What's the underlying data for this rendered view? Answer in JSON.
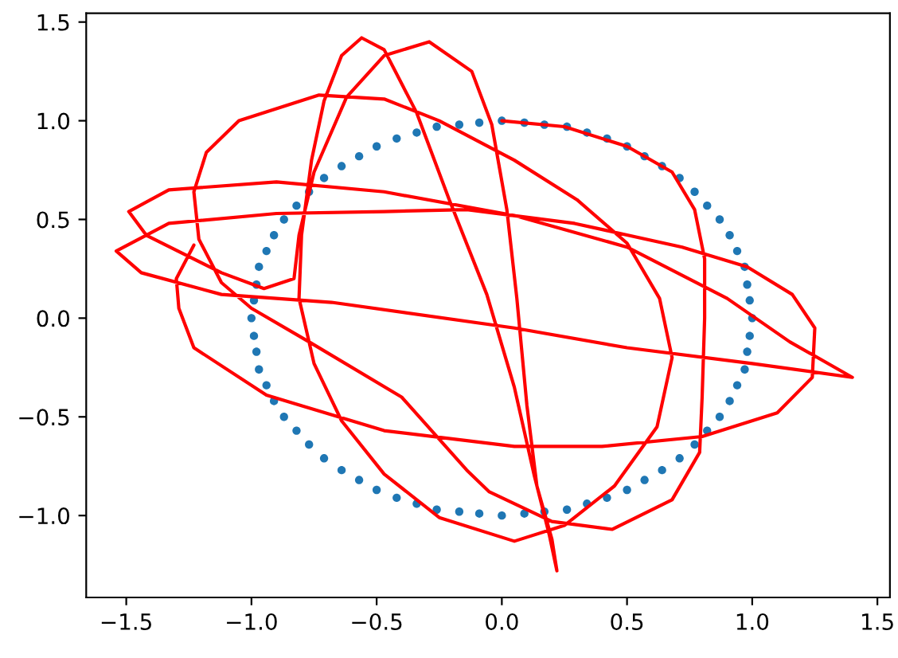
{
  "chart_data": {
    "type": "line",
    "xlim": [
      -1.66,
      1.55
    ],
    "ylim": [
      -1.415,
      1.545
    ],
    "xticks": [
      {
        "value": -1.5,
        "label": "−1.5"
      },
      {
        "value": -1.0,
        "label": "−1.0"
      },
      {
        "value": -0.5,
        "label": "−0.5"
      },
      {
        "value": 0.0,
        "label": "0.0"
      },
      {
        "value": 0.5,
        "label": "0.5"
      },
      {
        "value": 1.0,
        "label": "1.0"
      },
      {
        "value": 1.5,
        "label": "1.5"
      }
    ],
    "yticks": [
      {
        "value": -1.0,
        "label": "−1.0"
      },
      {
        "value": -0.5,
        "label": "−0.5"
      },
      {
        "value": 0.0,
        "label": "0.0"
      },
      {
        "value": 0.5,
        "label": "0.5"
      },
      {
        "value": 1.0,
        "label": "1.0"
      },
      {
        "value": 1.5,
        "label": "1.5"
      }
    ],
    "grid": false,
    "series": [
      {
        "type": "scatter",
        "color": "#1f77b4",
        "x": [
          1,
          0.99,
          0.98,
          0.97,
          0.94,
          0.91,
          0.87,
          0.82,
          0.77,
          0.71,
          0.64,
          0.57,
          0.5,
          0.42,
          0.34,
          0.26,
          0.17,
          0.09,
          0,
          -0.09,
          -0.17,
          -0.26,
          -0.34,
          -0.42,
          -0.5,
          -0.57,
          -0.64,
          -0.71,
          -0.77,
          -0.82,
          -0.87,
          -0.91,
          -0.94,
          -0.97,
          -0.98,
          -0.99,
          -1,
          -0.99,
          -0.98,
          -0.97,
          -0.94,
          -0.91,
          -0.87,
          -0.82,
          -0.77,
          -0.71,
          -0.64,
          -0.57,
          -0.5,
          -0.42,
          -0.34,
          -0.26,
          -0.17,
          -0.09,
          0,
          0.09,
          0.17,
          0.26,
          0.34,
          0.42,
          0.5,
          0.57,
          0.64,
          0.71,
          0.77,
          0.82,
          0.87,
          0.91,
          0.94,
          0.97,
          0.98,
          0.99
        ],
        "values": [
          0,
          0.09,
          0.17,
          0.26,
          0.34,
          0.42,
          0.5,
          0.57,
          0.64,
          0.71,
          0.77,
          0.82,
          0.87,
          0.91,
          0.94,
          0.97,
          0.98,
          0.99,
          1,
          0.99,
          0.98,
          0.97,
          0.94,
          0.91,
          0.87,
          0.82,
          0.77,
          0.71,
          0.64,
          0.57,
          0.5,
          0.42,
          0.34,
          0.26,
          0.17,
          0.09,
          0,
          -0.09,
          -0.17,
          -0.26,
          -0.34,
          -0.42,
          -0.5,
          -0.57,
          -0.64,
          -0.71,
          -0.77,
          -0.82,
          -0.87,
          -0.91,
          -0.94,
          -0.97,
          -0.98,
          -0.99,
          -1,
          -0.99,
          -0.98,
          -0.97,
          -0.94,
          -0.91,
          -0.87,
          -0.82,
          -0.77,
          -0.71,
          -0.64,
          -0.57,
          -0.5,
          -0.42,
          -0.34,
          -0.26,
          -0.17,
          -0.09
        ]
      },
      {
        "color": "#ff0000",
        "x": [
          0.0,
          0.25,
          0.5,
          0.68,
          0.77,
          0.81,
          0.81,
          0.8,
          0.79,
          0.68,
          0.44,
          0.2,
          -0.05,
          -0.14,
          -0.4,
          -0.77,
          -1.0,
          -1.12,
          -1.21,
          -1.23,
          -1.18,
          -1.05,
          -0.73,
          -0.47,
          -0.25,
          0.05,
          0.3,
          0.5,
          0.63,
          0.68,
          0.62,
          0.45,
          0.25,
          0.05,
          -0.25,
          -0.47,
          -0.64,
          -0.75,
          -0.81,
          -0.8,
          -0.76,
          -0.71,
          -0.64,
          -0.56,
          -0.47,
          -0.34,
          -0.21,
          -0.06,
          0.05,
          0.13,
          0.19,
          0.22,
          0.2,
          0.14,
          0.1,
          0.06,
          0.02,
          -0.04,
          -0.12,
          -0.29,
          -0.47,
          -0.62,
          -0.75,
          -0.81,
          -0.83,
          -0.95,
          -1.12,
          -1.42,
          -1.49,
          -1.33,
          -0.9,
          -0.47,
          0.05,
          0.5,
          0.9,
          1.15,
          1.4,
          1.0,
          0.5,
          0.05,
          -0.68,
          -1.12,
          -1.44,
          -1.54,
          -1.33,
          -0.9,
          -0.47,
          -0.14,
          0.29,
          0.72,
          0.98,
          1.16,
          1.25,
          1.24,
          1.1,
          0.8,
          0.4,
          0.05,
          -0.47,
          -0.94,
          -1.23,
          -1.29,
          -1.3,
          -1.23
        ],
        "values": [
          1.0,
          0.97,
          0.87,
          0.74,
          0.55,
          0.3,
          0.0,
          -0.4,
          -0.68,
          -0.92,
          -1.07,
          -1.03,
          -0.88,
          -0.77,
          -0.4,
          -0.12,
          0.05,
          0.18,
          0.4,
          0.64,
          0.84,
          1.0,
          1.13,
          1.11,
          1.0,
          0.8,
          0.6,
          0.38,
          0.1,
          -0.2,
          -0.55,
          -0.85,
          -1.05,
          -1.13,
          -1.01,
          -0.79,
          -0.52,
          -0.23,
          0.1,
          0.42,
          0.8,
          1.1,
          1.33,
          1.42,
          1.36,
          1.04,
          0.6,
          0.12,
          -0.35,
          -0.8,
          -1.1,
          -1.28,
          -1.12,
          -0.85,
          -0.44,
          0.1,
          0.55,
          0.98,
          1.25,
          1.4,
          1.33,
          1.12,
          0.74,
          0.42,
          0.2,
          0.15,
          0.23,
          0.42,
          0.54,
          0.65,
          0.69,
          0.64,
          0.52,
          0.36,
          0.1,
          -0.12,
          -0.3,
          -0.23,
          -0.15,
          -0.05,
          0.08,
          0.12,
          0.23,
          0.34,
          0.48,
          0.53,
          0.54,
          0.55,
          0.48,
          0.36,
          0.26,
          0.12,
          -0.05,
          -0.3,
          -0.48,
          -0.6,
          -0.65,
          -0.65,
          -0.57,
          -0.39,
          -0.15,
          0.05,
          0.2,
          0.37
        ]
      }
    ]
  }
}
